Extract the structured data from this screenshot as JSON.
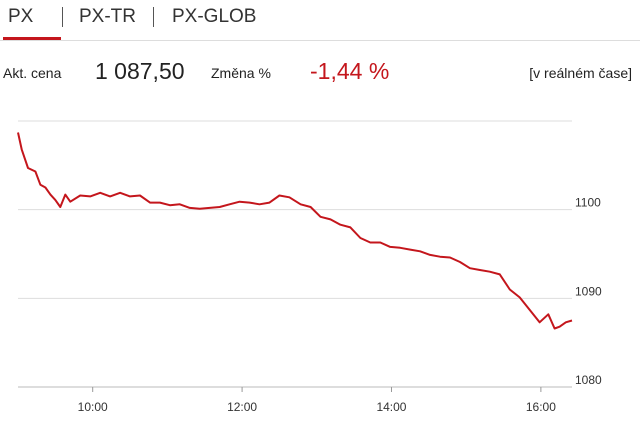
{
  "tabs": [
    "PX",
    "PX-TR",
    "PX-GLOB"
  ],
  "header": {
    "price_label": "Akt. cena",
    "price": "1 087,50",
    "change_label": "Změna %",
    "change": "-1,44 %",
    "note": "[v reálném čase]"
  },
  "chart_data": {
    "type": "line",
    "color": "#c4161c",
    "x": [
      540,
      543,
      548,
      554,
      558,
      562,
      566,
      570,
      574,
      578,
      582,
      590,
      598,
      606,
      614,
      622,
      630,
      638,
      646,
      654,
      662,
      670,
      678,
      686,
      694,
      702,
      710,
      718,
      726,
      734,
      742,
      750,
      758,
      767,
      775,
      783,
      791,
      799,
      807,
      815,
      823,
      831,
      839,
      847,
      855,
      863,
      871,
      879,
      887,
      895,
      903,
      911,
      919,
      927,
      935,
      943,
      951,
      959,
      966,
      971,
      975,
      980,
      985
    ],
    "values": [
      1108.7,
      1106.8,
      1104.7,
      1104.3,
      1102.8,
      1102.5,
      1101.7,
      1101.1,
      1100.3,
      1101.7,
      1100.9,
      1101.6,
      1101.5,
      1101.9,
      1101.5,
      1101.9,
      1101.5,
      1101.6,
      1100.8,
      1100.8,
      1100.5,
      1100.6,
      1100.2,
      1100.1,
      1100.2,
      1100.3,
      1100.6,
      1100.9,
      1100.8,
      1100.6,
      1100.8,
      1101.6,
      1101.4,
      1100.6,
      1100.3,
      1099.2,
      1098.9,
      1098.3,
      1098.0,
      1096.8,
      1096.3,
      1096.3,
      1095.8,
      1095.7,
      1095.5,
      1095.3,
      1094.9,
      1094.7,
      1094.6,
      1094.1,
      1093.4,
      1093.2,
      1093.0,
      1092.7,
      1091.0,
      1090.1,
      1088.7,
      1087.3,
      1088.2,
      1086.6,
      1086.8,
      1087.3,
      1087.5
    ],
    "xlim": [
      540,
      985
    ],
    "xticks": [
      {
        "value": 600,
        "label": "10:00"
      },
      {
        "value": 720,
        "label": "12:00"
      },
      {
        "value": 840,
        "label": "14:00"
      },
      {
        "value": 960,
        "label": "16:00"
      }
    ],
    "ylim": [
      1080,
      1110
    ],
    "yticks": [
      1080,
      1090,
      1100
    ],
    "grid": true
  }
}
